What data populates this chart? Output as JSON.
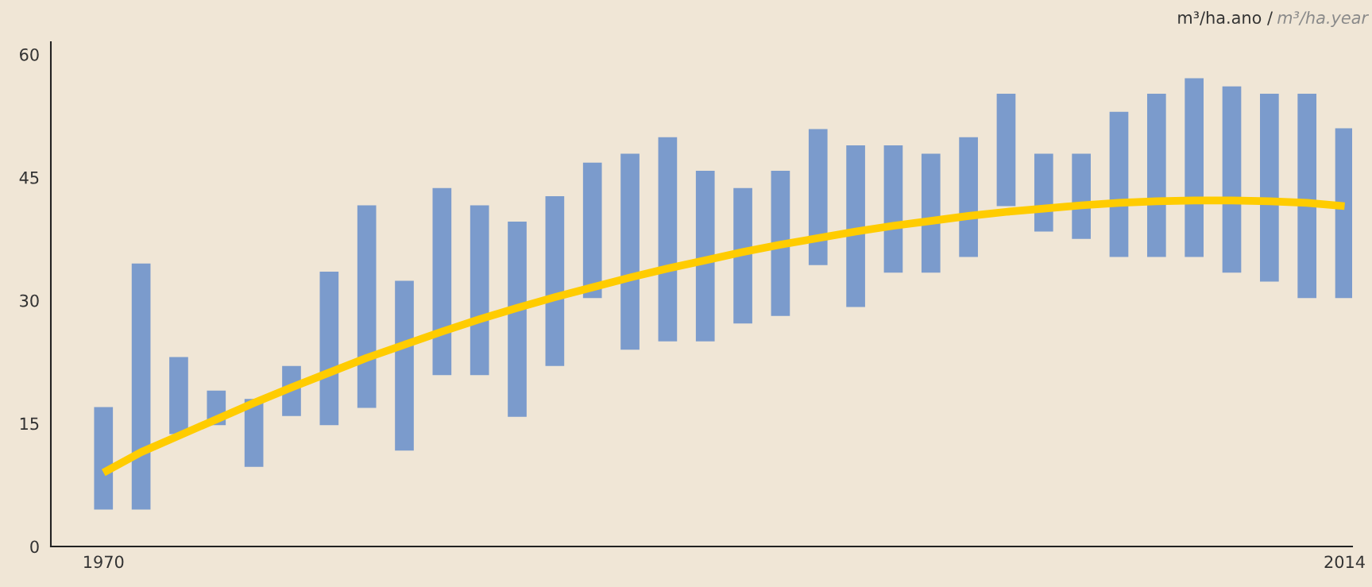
{
  "chart_data": {
    "type": "bar",
    "categories": [
      "1970",
      null,
      null,
      null,
      null,
      null,
      null,
      null,
      null,
      null,
      null,
      null,
      null,
      null,
      null,
      null,
      null,
      null,
      null,
      null,
      null,
      null,
      null,
      null,
      null,
      null,
      null,
      null,
      null,
      null,
      null,
      null,
      null,
      "2014"
    ],
    "series": [
      {
        "color": "#7b9bcc",
        "base": [
          4.5,
          4.5,
          13.7,
          14.8,
          9.7,
          15.9,
          14.8,
          16.9,
          11.7,
          20.9,
          20.9,
          15.8,
          22,
          30.3,
          24,
          25,
          25,
          27.2,
          28.1,
          34.3,
          29.2,
          33.4,
          33.4,
          35.3,
          41.5,
          38.4,
          37.5,
          35.3,
          35.3,
          35.3,
          33.4,
          32.3,
          30.3,
          30.3
        ],
        "values": [
          12.5,
          30,
          9.4,
          4.2,
          8.3,
          6.1,
          18.7,
          24.7,
          20.7,
          22.8,
          20.7,
          23.8,
          20.7,
          16.5,
          23.9,
          24.9,
          20.8,
          16.5,
          17.7,
          16.6,
          19.7,
          15.5,
          14.5,
          14.6,
          13.7,
          9.5,
          10.4,
          17.7,
          19.9,
          21.8,
          22.7,
          22.9,
          24.9,
          20.7
        ]
      },
      {
        "type": "line",
        "color": "#ffcc00",
        "values": [
          9.0,
          11.5,
          13.5,
          15.5,
          17.5,
          19.4,
          21.2,
          23,
          24.6,
          26.2,
          27.7,
          29.1,
          30.4,
          31.6,
          32.8,
          33.9,
          34.9,
          35.9,
          36.8,
          37.6,
          38.4,
          39.1,
          39.7,
          40.3,
          40.8,
          41.2,
          41.6,
          41.9,
          42.1,
          42.2,
          42.2,
          42.1,
          41.9,
          41.5
        ]
      }
    ],
    "ylim": [
      0,
      61.5
    ],
    "yticks": [
      0,
      15,
      30,
      45,
      60
    ],
    "grid": false,
    "legend": false,
    "annotations": [
      "m³/ha.ano /",
      "m³/ha.year"
    ]
  }
}
